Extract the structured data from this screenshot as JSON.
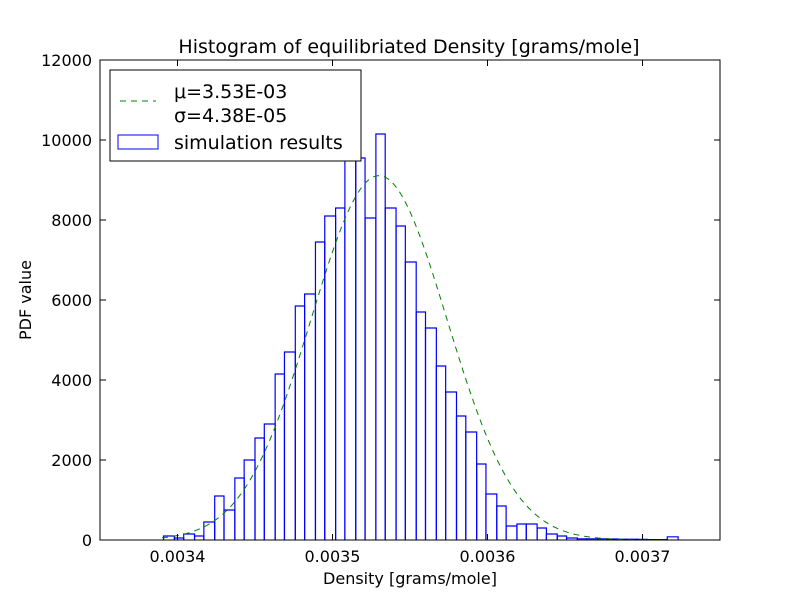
{
  "chart_data": {
    "type": "histogram",
    "title": "Histogram of equilibriated Density [grams/mole]",
    "xlabel": "Density [grams/mole]",
    "ylabel": "PDF value",
    "xlim": [
      0.00335,
      0.00375
    ],
    "ylim": [
      0,
      12000
    ],
    "x_ticks": [
      0.0034,
      0.0035,
      0.0036,
      0.0037
    ],
    "x_tick_labels": [
      "0.0034",
      "0.0035",
      "0.0036",
      "0.0037"
    ],
    "y_ticks": [
      0,
      2000,
      4000,
      6000,
      8000,
      10000,
      12000
    ],
    "y_tick_labels": [
      "0",
      "2000",
      "4000",
      "6000",
      "8000",
      "10000",
      "12000"
    ],
    "grid": false,
    "legend_position": "top-left",
    "series": [
      {
        "name": "simulation results",
        "kind": "step-histogram",
        "color": "#0000ff",
        "bin_edges": [
          0.003391,
          0.003398,
          0.003404,
          0.003411,
          0.003417,
          0.003424,
          0.00343,
          0.003437,
          0.003443,
          0.00345,
          0.003456,
          0.003463,
          0.003469,
          0.003476,
          0.003482,
          0.003489,
          0.003495,
          0.003502,
          0.003508,
          0.003515,
          0.003521,
          0.003528,
          0.003534,
          0.003541,
          0.003547,
          0.003554,
          0.00356,
          0.003567,
          0.003573,
          0.00358,
          0.003586,
          0.003593,
          0.003599,
          0.003606,
          0.003612,
          0.003619,
          0.003625,
          0.003632,
          0.003638,
          0.003645,
          0.003651,
          0.003658,
          0.003664,
          0.003671,
          0.003677,
          0.003684,
          0.00369,
          0.003697,
          0.003703,
          0.00371,
          0.003716,
          0.003723
        ],
        "values": [
          100,
          50,
          150,
          100,
          450,
          1100,
          750,
          1550,
          2000,
          2550,
          2900,
          4150,
          4700,
          5850,
          6150,
          7450,
          8100,
          8300,
          9500,
          9550,
          8050,
          10150,
          8300,
          7850,
          6950,
          5700,
          5300,
          4350,
          3700,
          3100,
          2700,
          1900,
          1150,
          850,
          350,
          400,
          400,
          300,
          150,
          100,
          50,
          30,
          30,
          30,
          25,
          20,
          20,
          15,
          10,
          10,
          80
        ]
      },
      {
        "name": "",
        "kind": "normal-pdf-curve",
        "color": "#008000",
        "linestyle": "dashed",
        "mu": 0.00353,
        "sigma": 4.38e-05
      }
    ],
    "legend_entries": [
      {
        "label": "μ=3.53E-03",
        "style": "dashed",
        "color": "#008000"
      },
      {
        "label": "σ=4.38E-05",
        "style": "none",
        "color": ""
      },
      {
        "label": "simulation results",
        "style": "box",
        "color": "#0000ff"
      }
    ]
  }
}
